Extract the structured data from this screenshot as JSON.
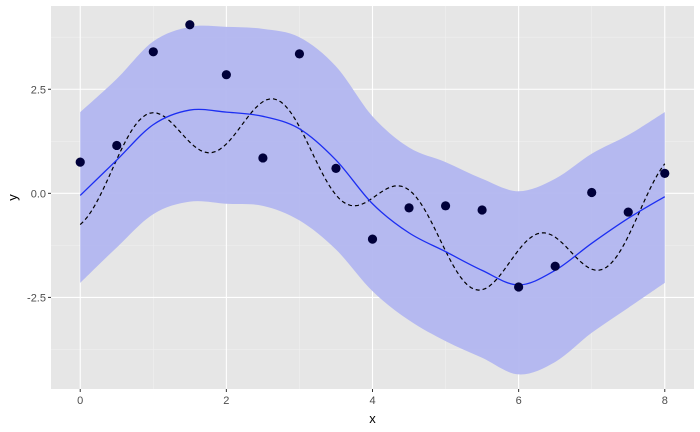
{
  "chart_data": {
    "type": "line",
    "xlabel": "x",
    "ylabel": "y",
    "xlim": [
      -0.4,
      8.4
    ],
    "ylim": [
      -4.7,
      4.5
    ],
    "x_ticks": [
      0,
      2,
      4,
      6,
      8
    ],
    "x_tick_labels": [
      "0",
      "2",
      "4",
      "6",
      "8"
    ],
    "y_ticks": [
      -2.5,
      0,
      2.5
    ],
    "y_tick_labels": [
      "-2.5",
      "0.0",
      "2.5"
    ],
    "grid": true,
    "background": "#e6e6e6",
    "colors": {
      "ribbon": "#b2b6f0",
      "fit_line": "#1c2ef2",
      "true_line": "#000000",
      "points": "#00003a",
      "grid_major": "#ffffff",
      "grid_minor": "#f0f0f0"
    },
    "points": {
      "x": [
        0,
        0.5,
        1,
        1.5,
        2,
        2.5,
        3,
        3.5,
        4,
        4.5,
        5,
        5.5,
        6,
        6.5,
        7,
        7.5,
        8
      ],
      "y": [
        0.75,
        1.15,
        3.4,
        4.05,
        2.85,
        0.85,
        3.35,
        0.6,
        -1.1,
        -0.35,
        -0.3,
        -0.4,
        -2.25,
        -1.75,
        0.02,
        -0.45,
        0.48
      ]
    },
    "fit": {
      "x": [
        0,
        0.5,
        1,
        1.5,
        2,
        2.5,
        3,
        3.5,
        4,
        4.5,
        5,
        5.5,
        6,
        6.5,
        7,
        7.5,
        8
      ],
      "y": [
        -0.05,
        0.8,
        1.65,
        2.0,
        1.95,
        1.85,
        1.55,
        0.8,
        -0.25,
        -0.95,
        -1.4,
        -1.85,
        -2.2,
        -1.85,
        -1.2,
        -0.6,
        -0.08
      ]
    },
    "ribbon": {
      "x": [
        0,
        0.5,
        1,
        1.5,
        2,
        2.5,
        3,
        3.5,
        4,
        4.5,
        5,
        5.5,
        6,
        6.5,
        7,
        7.5,
        8
      ],
      "lower": [
        -2.15,
        -1.3,
        -0.5,
        -0.2,
        -0.25,
        -0.3,
        -0.65,
        -1.35,
        -2.35,
        -3.05,
        -3.55,
        -3.95,
        -4.35,
        -4.05,
        -3.35,
        -2.75,
        -2.15
      ],
      "upper": [
        1.95,
        2.75,
        3.65,
        4.0,
        4.0,
        3.95,
        3.75,
        3.05,
        1.85,
        1.1,
        0.75,
        0.35,
        0.05,
        0.35,
        0.95,
        1.4,
        1.95
      ]
    },
    "true_function": {
      "description_free": true,
      "x_start": 0,
      "x_end": 8,
      "samples": 161
    }
  }
}
